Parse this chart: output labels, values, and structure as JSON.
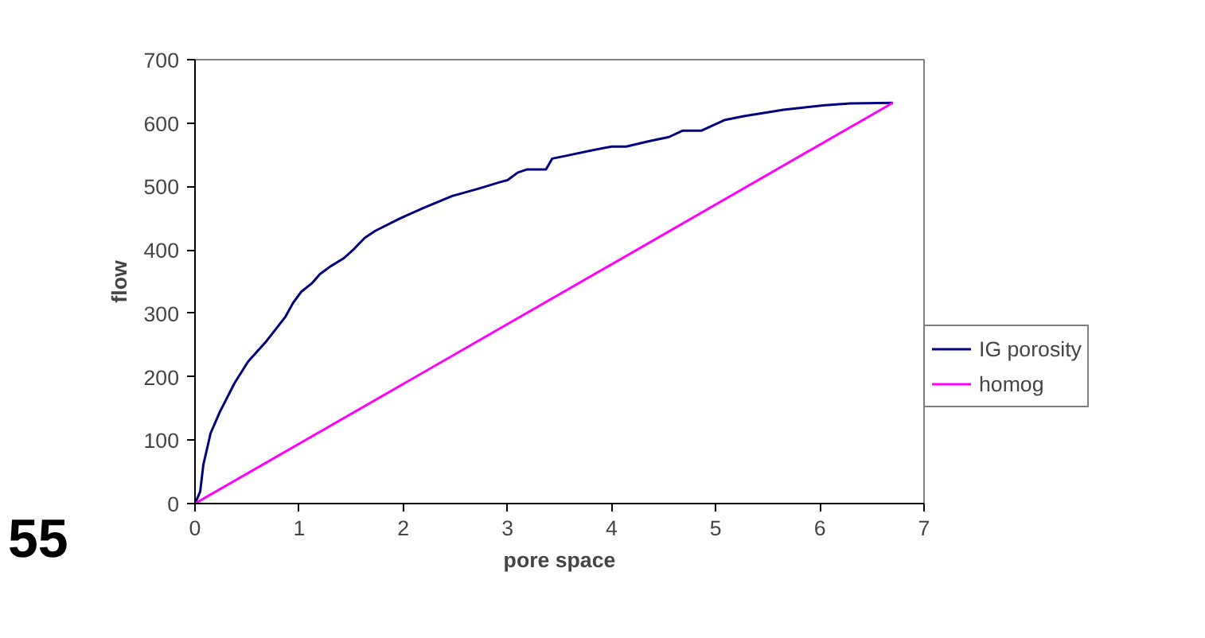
{
  "chart_data": {
    "type": "line",
    "xlabel": "pore space",
    "ylabel": "flow",
    "xlim": [
      0,
      7
    ],
    "ylim": [
      0,
      700
    ],
    "xticks": [
      0,
      1,
      2,
      3,
      4,
      5,
      6,
      7
    ],
    "yticks": [
      0,
      100,
      200,
      300,
      400,
      500,
      600,
      700
    ],
    "grid": false,
    "legend": "right",
    "marker": "none",
    "line_style": "solid",
    "annotations": [
      "55"
    ],
    "series": [
      {
        "name": "IG porosity",
        "color": "#000080",
        "x": [
          0,
          0.05,
          0.08,
          0.15,
          0.24,
          0.38,
          0.51,
          0.69,
          0.87,
          0.94,
          1.02,
          1.12,
          1.2,
          1.3,
          1.43,
          1.53,
          1.63,
          1.73,
          1.96,
          2.19,
          2.47,
          2.73,
          2.93,
          3.0,
          3.1,
          3.19,
          3.37,
          3.43,
          3.58,
          3.81,
          4.0,
          4.14,
          4.35,
          4.55,
          4.68,
          4.86,
          5.09,
          5.27,
          5.65,
          6.03,
          6.29,
          6.7
        ],
        "values": [
          0,
          19,
          61,
          111,
          145,
          190,
          224,
          257,
          295,
          316,
          334,
          347,
          362,
          374,
          387,
          402,
          419,
          430,
          449,
          466,
          485,
          497,
          507,
          510,
          522,
          527,
          527,
          544,
          549,
          557,
          563,
          563,
          571,
          578,
          588,
          588,
          605,
          611,
          621,
          628,
          631,
          632
        ]
      },
      {
        "name": "homog",
        "color": "#ff00ff",
        "x": [
          0,
          6.7
        ],
        "values": [
          0,
          632
        ]
      }
    ]
  }
}
